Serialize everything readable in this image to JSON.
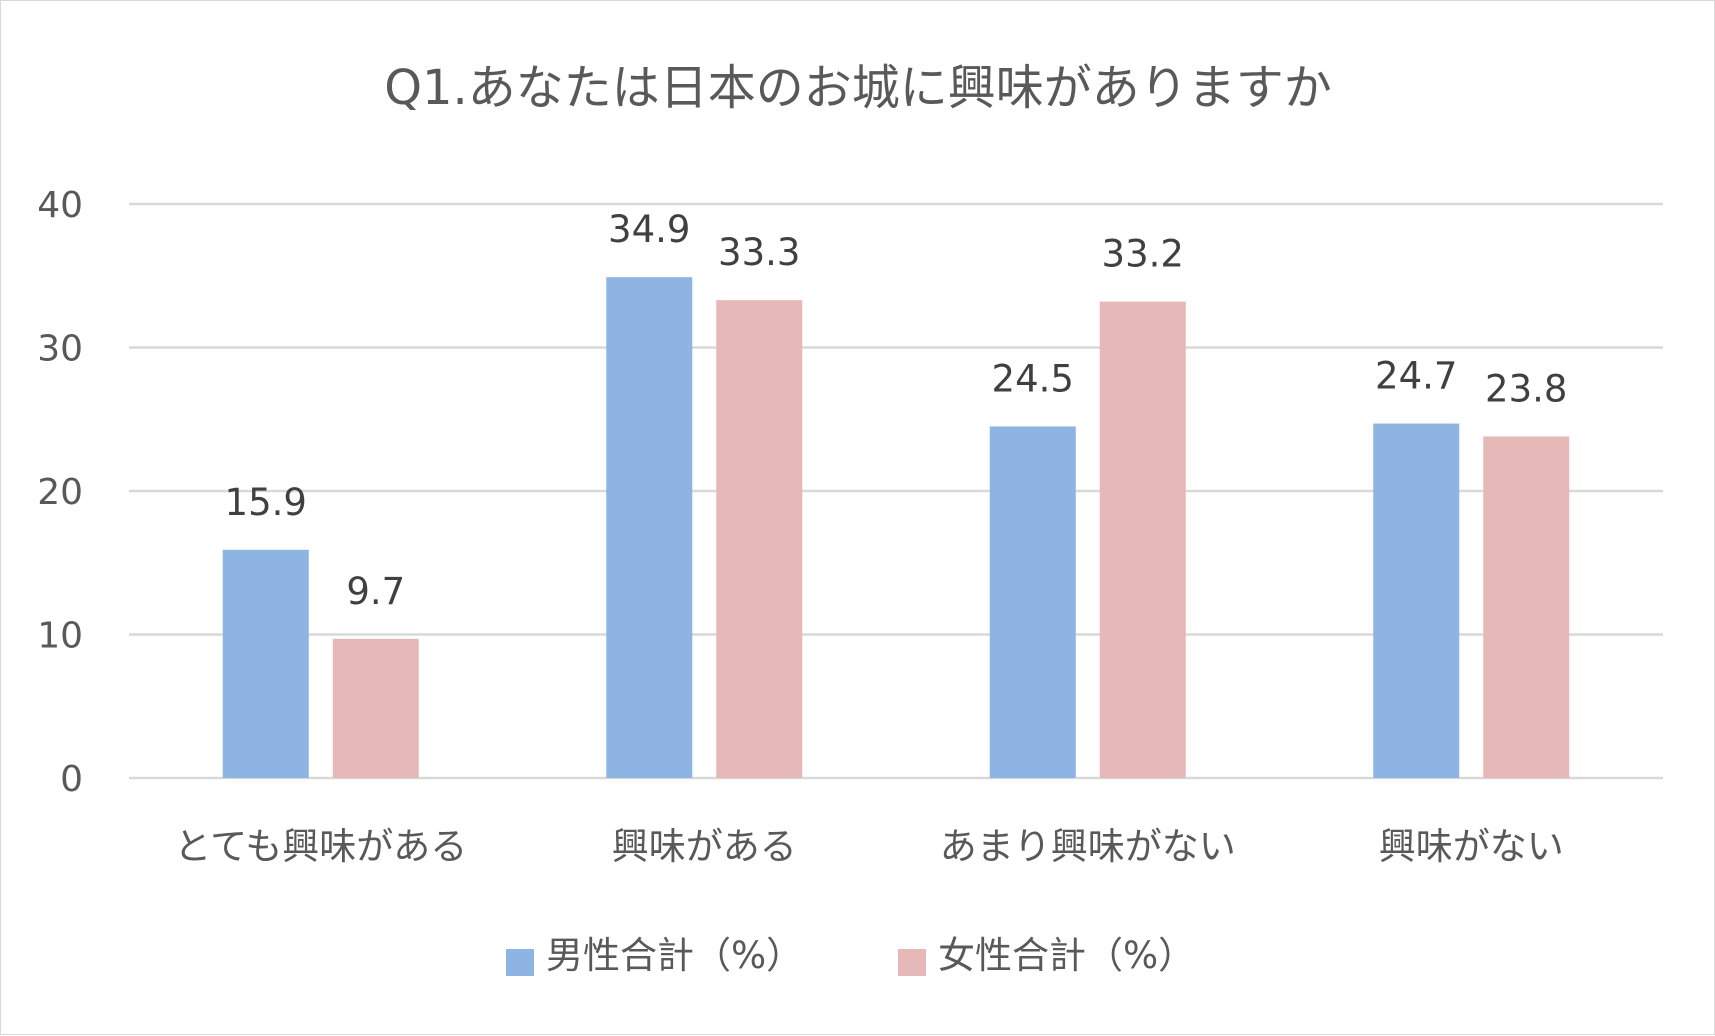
{
  "chart_data": {
    "type": "bar",
    "title": "Q1.あなたは日本のお城に興味がありますか",
    "categories": [
      "とても興味がある",
      "興味がある",
      "あまり興味がない",
      "興味がない"
    ],
    "series": [
      {
        "name": "男性合計（%）",
        "values": [
          15.9,
          34.9,
          24.5,
          24.7
        ],
        "color": "#8eb4e3"
      },
      {
        "name": "女性合計（%）",
        "values": [
          9.7,
          33.3,
          33.2,
          23.8
        ],
        "color": "#e6b9b8"
      }
    ],
    "data_labels": [
      [
        "15.9",
        "34.9",
        "24.5",
        "24.7"
      ],
      [
        "9.7",
        "33.3",
        "33.2",
        "23.8"
      ]
    ],
    "y_ticks": [
      "0",
      "10",
      "20",
      "30",
      "40"
    ],
    "ylim": [
      0,
      40
    ],
    "grid": true,
    "legend": "bottom",
    "gridline_color": "#d9d9d9"
  }
}
